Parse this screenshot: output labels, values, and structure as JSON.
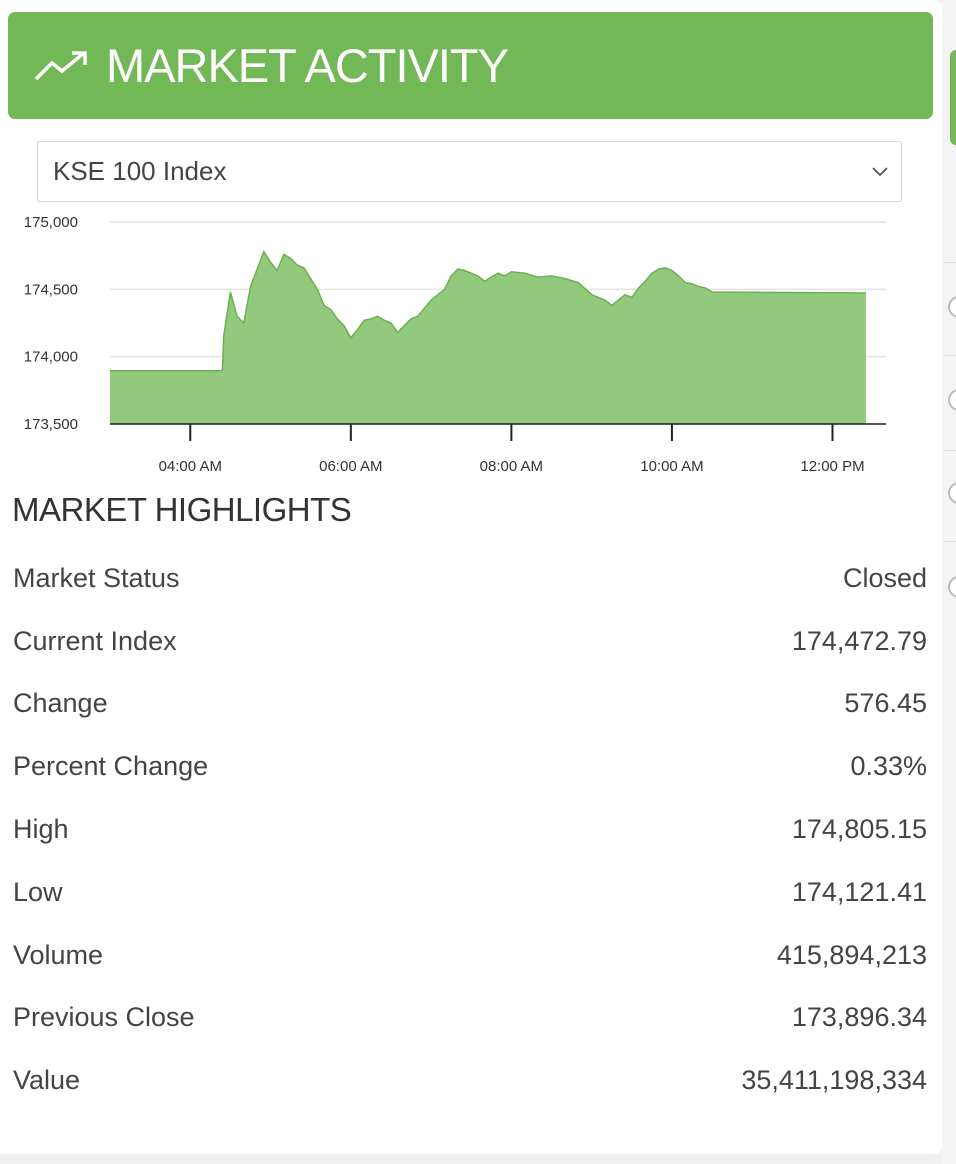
{
  "header": {
    "title": "MARKET ACTIVITY",
    "icon": "trending-up-icon"
  },
  "colors": {
    "accent": "#72b857",
    "area_fill": "#93c97d",
    "area_line": "#6cb04f",
    "grid": "#e3e3e3"
  },
  "index_select": {
    "selected": "KSE 100 Index",
    "icon": "chevron-down-icon"
  },
  "chart_data": {
    "type": "area",
    "title": "",
    "xlabel": "",
    "ylabel": "",
    "ylim": [
      173500,
      175000
    ],
    "xlim": [
      "03:00 AM",
      "12:40 PM"
    ],
    "y_ticks": [
      "175,000",
      "174,500",
      "174,000",
      "173,500"
    ],
    "x_ticks": [
      "04:00 AM",
      "06:00 AM",
      "08:00 AM",
      "10:00 AM",
      "12:00 PM"
    ],
    "grid": true,
    "series": [
      {
        "x": [
          "03:00",
          "04:24",
          "04:25",
          "04:30",
          "04:35",
          "04:40",
          "04:45",
          "04:50",
          "04:55",
          "05:00",
          "05:05",
          "05:10",
          "05:15",
          "05:20",
          "05:25",
          "05:30",
          "05:35",
          "05:40",
          "05:45",
          "05:50",
          "05:55",
          "06:00",
          "06:05",
          "06:10",
          "06:15",
          "06:20",
          "06:25",
          "06:30",
          "06:35",
          "06:40",
          "06:45",
          "06:50",
          "06:55",
          "07:00",
          "07:05",
          "07:10",
          "07:15",
          "07:20",
          "07:25",
          "07:30",
          "07:35",
          "07:40",
          "07:45",
          "07:50",
          "07:55",
          "08:00",
          "08:10",
          "08:20",
          "08:30",
          "08:40",
          "08:50",
          "09:00",
          "09:10",
          "09:15",
          "09:20",
          "09:25",
          "09:30",
          "09:35",
          "09:40",
          "09:45",
          "09:50",
          "09:55",
          "10:00",
          "10:05",
          "10:10",
          "10:15",
          "10:20",
          "10:25",
          "10:30",
          "12:25"
        ],
        "y": [
          173896,
          173896,
          174150,
          174480,
          174300,
          174250,
          174520,
          174650,
          174780,
          174700,
          174640,
          174760,
          174730,
          174680,
          174660,
          174580,
          174500,
          174380,
          174350,
          174280,
          174230,
          174140,
          174200,
          174270,
          174280,
          174300,
          174270,
          174250,
          174180,
          174230,
          174280,
          174300,
          174360,
          174420,
          174460,
          174500,
          174600,
          174650,
          174640,
          174620,
          174600,
          174560,
          174590,
          174620,
          174600,
          174630,
          174620,
          174590,
          174600,
          174580,
          174550,
          174460,
          174420,
          174380,
          174420,
          174460,
          174440,
          174510,
          174560,
          174620,
          174650,
          174660,
          174640,
          174600,
          174550,
          174540,
          174520,
          174510,
          174480,
          174473
        ]
      }
    ]
  },
  "highlights": {
    "title": "MARKET HIGHLIGHTS",
    "rows": [
      {
        "label": "Market Status",
        "value": "Closed"
      },
      {
        "label": "Current Index",
        "value": "174,472.79"
      },
      {
        "label": "Change",
        "value": "576.45"
      },
      {
        "label": "Percent Change",
        "value": "0.33%"
      },
      {
        "label": "High",
        "value": "174,805.15"
      },
      {
        "label": "Low",
        "value": "174,121.41"
      },
      {
        "label": "Volume",
        "value": "415,894,213"
      },
      {
        "label": "Previous Close",
        "value": "173,896.34"
      },
      {
        "label": "Value",
        "value": "35,411,198,334"
      }
    ]
  }
}
